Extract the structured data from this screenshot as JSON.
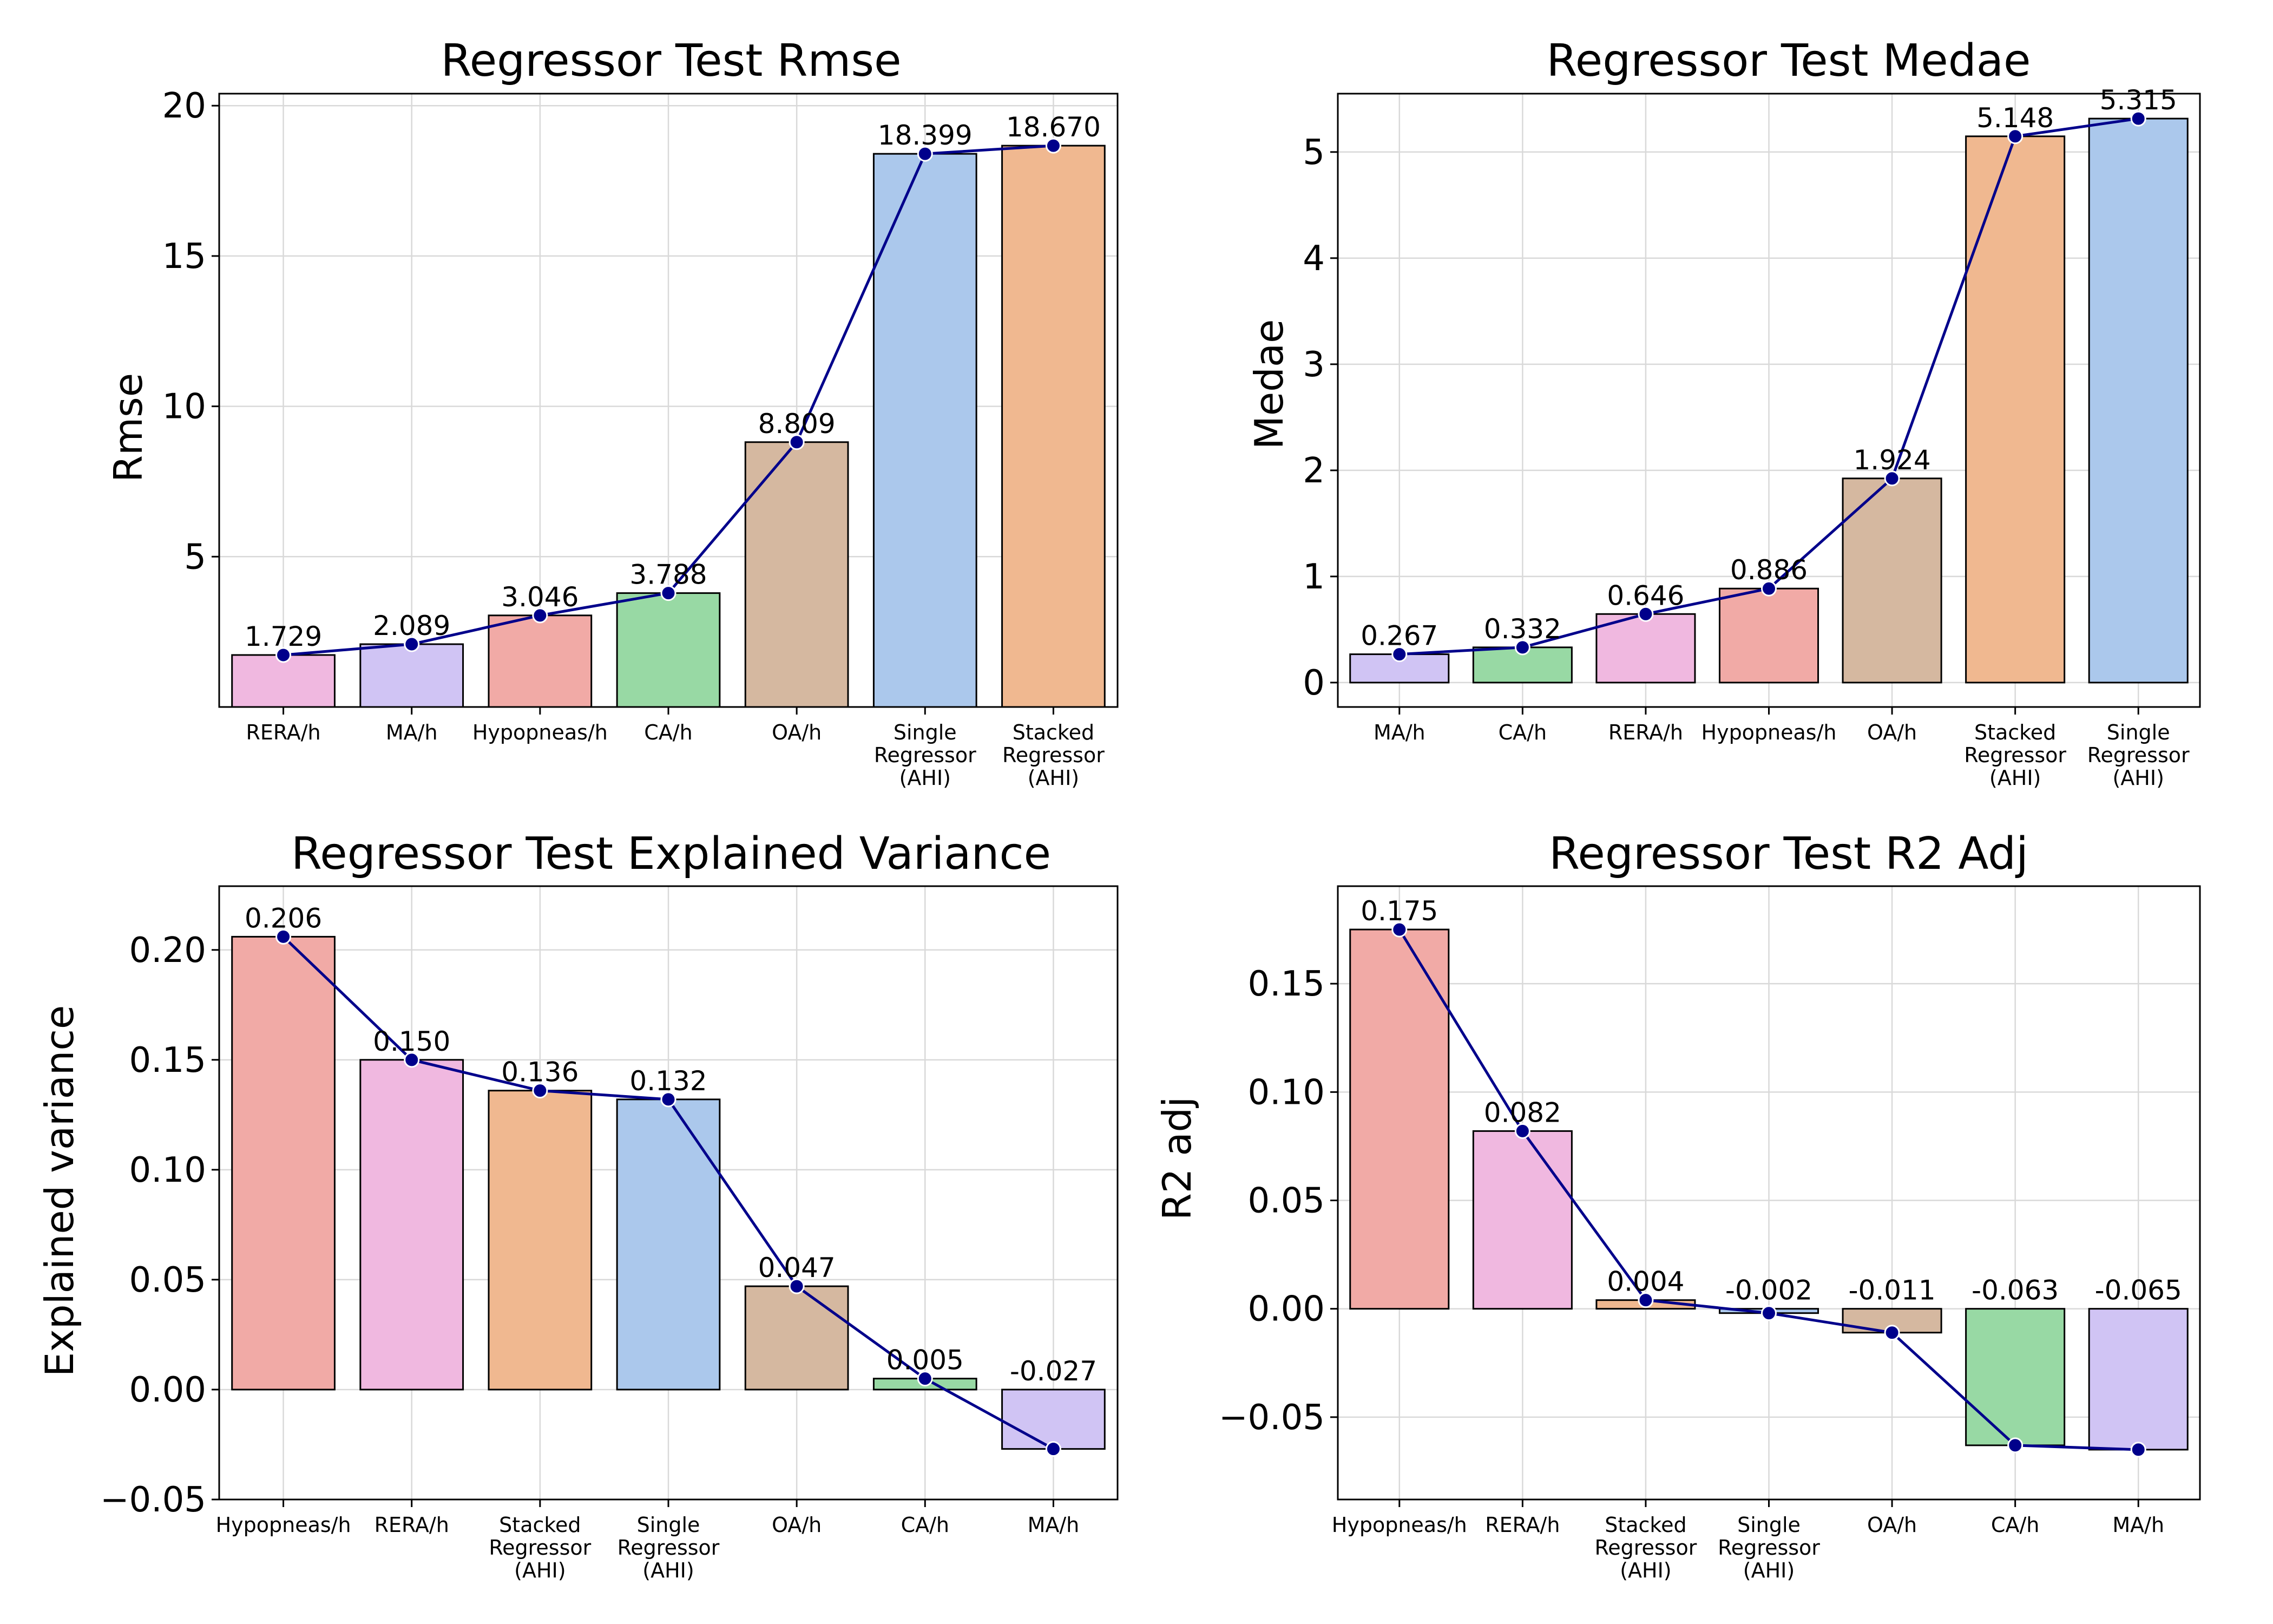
{
  "palette": {
    "Hypopneas/h": "#f1aaa6",
    "RERA/h": "#f0b8e0",
    "Stacked Regressor (AHI)": "#f0b890",
    "Single Regressor (AHI)": "#abc8ec",
    "OA/h": "#d5b8a0",
    "CA/h": "#98d9a4",
    "MA/h": "#d0c4f4",
    "line": "#00008b"
  },
  "chart_data": [
    {
      "type": "bar",
      "title": "Regressor Test Rmse",
      "xlabel": "",
      "ylabel": "Rmse",
      "ylim": [
        0,
        20.4
      ],
      "yticks": [
        5,
        10,
        15,
        20
      ],
      "grid": true,
      "categories": [
        "RERA/h",
        "MA/h",
        "Hypopneas/h",
        "CA/h",
        "OA/h",
        "Single Regressor (AHI)",
        "Stacked Regressor (AHI)"
      ],
      "tick_labels": [
        [
          "RERA/h"
        ],
        [
          "MA/h"
        ],
        [
          "Hypopneas/h"
        ],
        [
          "CA/h"
        ],
        [
          "OA/h"
        ],
        [
          "Single",
          "Regressor",
          "(AHI)"
        ],
        [
          "Stacked",
          "Regressor",
          "(AHI)"
        ]
      ],
      "values": [
        1.729,
        2.089,
        3.046,
        3.788,
        8.809,
        18.399,
        18.67
      ],
      "value_labels": [
        "1.729",
        "2.089",
        "3.046",
        "3.788",
        "8.809",
        "18.399",
        "18.670"
      ]
    },
    {
      "type": "bar",
      "title": "Regressor Test Medae",
      "xlabel": "",
      "ylabel": "Medae",
      "ylim": [
        -0.23,
        5.55
      ],
      "yticks": [
        0,
        1,
        2,
        3,
        4,
        5
      ],
      "grid": true,
      "categories": [
        "MA/h",
        "CA/h",
        "RERA/h",
        "Hypopneas/h",
        "OA/h",
        "Stacked Regressor (AHI)",
        "Single Regressor (AHI)"
      ],
      "tick_labels": [
        [
          "MA/h"
        ],
        [
          "CA/h"
        ],
        [
          "RERA/h"
        ],
        [
          "Hypopneas/h"
        ],
        [
          "OA/h"
        ],
        [
          "Stacked",
          "Regressor",
          "(AHI)"
        ],
        [
          "Single",
          "Regressor",
          "(AHI)"
        ]
      ],
      "values": [
        0.267,
        0.332,
        0.646,
        0.886,
        1.924,
        5.148,
        5.315
      ],
      "value_labels": [
        "0.267",
        "0.332",
        "0.646",
        "0.886",
        "1.924",
        "5.148",
        "5.315"
      ]
    },
    {
      "type": "bar",
      "title": "Regressor Test Explained Variance",
      "xlabel": "",
      "ylabel": "Explained variance",
      "ylim": [
        -0.05,
        0.229
      ],
      "yticks": [
        -0.05,
        0.0,
        0.05,
        0.1,
        0.15,
        0.2
      ],
      "ytick_labels": [
        "−0.05",
        "0.00",
        "0.05",
        "0.10",
        "0.15",
        "0.20"
      ],
      "grid": true,
      "categories": [
        "Hypopneas/h",
        "RERA/h",
        "Stacked Regressor (AHI)",
        "Single Regressor (AHI)",
        "OA/h",
        "CA/h",
        "MA/h"
      ],
      "tick_labels": [
        [
          "Hypopneas/h"
        ],
        [
          "RERA/h"
        ],
        [
          "Stacked",
          "Regressor",
          "(AHI)"
        ],
        [
          "Single",
          "Regressor",
          "(AHI)"
        ],
        [
          "OA/h"
        ],
        [
          "CA/h"
        ],
        [
          "MA/h"
        ]
      ],
      "values": [
        0.206,
        0.15,
        0.136,
        0.132,
        0.047,
        0.005,
        -0.027
      ],
      "value_labels": [
        "0.206",
        "0.150",
        "0.136",
        "0.132",
        "0.047",
        "0.005",
        "-0.027"
      ]
    },
    {
      "type": "bar",
      "title": "Regressor Test R2 Adj",
      "xlabel": "",
      "ylabel": "R2 adj",
      "ylim": [
        -0.088,
        0.195
      ],
      "yticks": [
        -0.05,
        0.0,
        0.05,
        0.1,
        0.15
      ],
      "ytick_labels": [
        "−0.05",
        "0.00",
        "0.05",
        "0.10",
        "0.15"
      ],
      "grid": true,
      "categories": [
        "Hypopneas/h",
        "RERA/h",
        "Stacked Regressor (AHI)",
        "Single Regressor (AHI)",
        "OA/h",
        "CA/h",
        "MA/h"
      ],
      "tick_labels": [
        [
          "Hypopneas/h"
        ],
        [
          "RERA/h"
        ],
        [
          "Stacked",
          "Regressor",
          "(AHI)"
        ],
        [
          "Single",
          "Regressor",
          "(AHI)"
        ],
        [
          "OA/h"
        ],
        [
          "CA/h"
        ],
        [
          "MA/h"
        ]
      ],
      "values": [
        0.175,
        0.082,
        0.004,
        -0.002,
        -0.011,
        -0.063,
        -0.065
      ],
      "value_labels": [
        "0.175",
        "0.082",
        "0.004",
        "-0.002",
        "-0.011",
        "-0.063",
        "-0.065"
      ]
    }
  ]
}
